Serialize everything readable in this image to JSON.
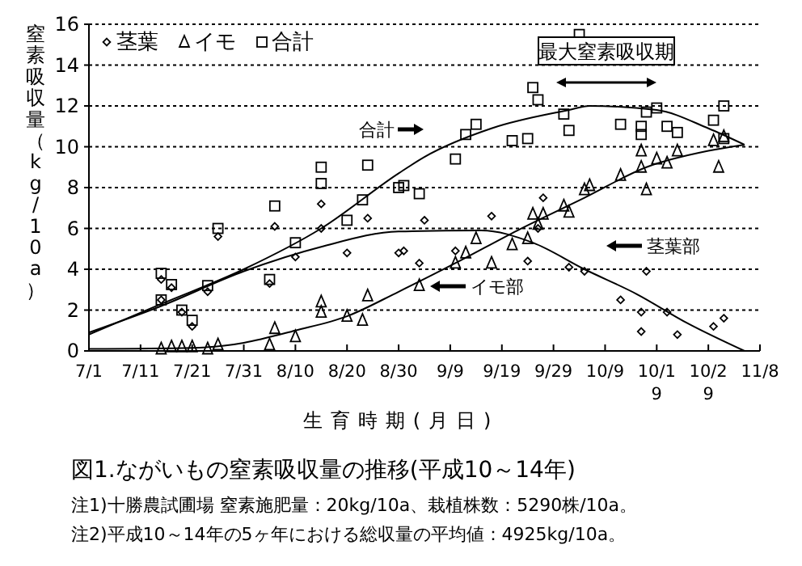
{
  "chart_data": {
    "type": "scatter",
    "title": "図1.ながいもの窒素吸収量の推移(平成10～14年)",
    "xlabel": "生育時期(月日)",
    "ylabel": "窒素吸収量（kg/10a）",
    "xlim": [
      "--07-01",
      "--11-08"
    ],
    "xticks": [
      {
        "value": "--07-01",
        "label": "7/1"
      },
      {
        "value": "--07-11",
        "label": "7/11"
      },
      {
        "value": "--07-21",
        "label": "7/21"
      },
      {
        "value": "--07-31",
        "label": "7/31"
      },
      {
        "value": "--08-10",
        "label": "8/10"
      },
      {
        "value": "--08-20",
        "label": "8/20"
      },
      {
        "value": "--08-30",
        "label": "8/30"
      },
      {
        "value": "--09-09",
        "label": "9/9"
      },
      {
        "value": "--09-19",
        "label": "9/19"
      },
      {
        "value": "--09-29",
        "label": "9/29"
      },
      {
        "value": "--10-09",
        "label": "10/9"
      },
      {
        "value": "--10-19",
        "label": "10/19"
      },
      {
        "value": "--10-29",
        "label": "10/29"
      },
      {
        "value": "--11-08",
        "label": "11/8"
      }
    ],
    "ylim": [
      0,
      16
    ],
    "yticks": [
      0,
      2,
      4,
      6,
      8,
      10,
      12,
      14,
      16
    ],
    "grid": "y",
    "legend": "top left",
    "series": [
      {
        "name": "茎葉",
        "marker": "diamond",
        "color": "#000000",
        "x": [
          "--07-15",
          "--07-15",
          "--07-17",
          "--07-19",
          "--07-21",
          "--07-24",
          "--07-26",
          "--08-05",
          "--08-06",
          "--08-10",
          "--08-15",
          "--08-15",
          "--08-20",
          "--08-24",
          "--08-30",
          "--08-31",
          "--09-03",
          "--09-04",
          "--09-10",
          "--09-17",
          "--09-24",
          "--09-26",
          "--09-27",
          "--10-02",
          "--10-05",
          "--10-12",
          "--10-16",
          "--10-16",
          "--10-17",
          "--10-21",
          "--10-23",
          "--10-30",
          "--11-01"
        ],
        "values": [
          3.5,
          2.5,
          3.1,
          1.9,
          1.2,
          2.9,
          5.6,
          3.3,
          6.1,
          4.6,
          7.2,
          6.0,
          4.8,
          6.5,
          4.8,
          4.9,
          4.3,
          6.4,
          4.9,
          6.6,
          4.4,
          6.0,
          7.5,
          4.1,
          3.9,
          2.5,
          1.9,
          0.95,
          3.9,
          1.9,
          0.8,
          1.2,
          1.6
        ]
      },
      {
        "name": "イモ",
        "marker": "triangle",
        "color": "#000000",
        "x": [
          "--07-15",
          "--07-17",
          "--07-19",
          "--07-21",
          "--07-24",
          "--07-26",
          "--08-05",
          "--08-06",
          "--08-10",
          "--08-15",
          "--08-15",
          "--08-20",
          "--08-23",
          "--08-24",
          "--09-03",
          "--09-10",
          "--09-12",
          "--09-14",
          "--09-17",
          "--09-21",
          "--09-24",
          "--09-25",
          "--09-26",
          "--09-27",
          "--10-01",
          "--10-02",
          "--10-05",
          "--10-06",
          "--10-12",
          "--10-16",
          "--10-16",
          "--10-17",
          "--10-19",
          "--10-21",
          "--10-23",
          "--10-30",
          "--10-31",
          "--11-01"
        ],
        "values": [
          0.1,
          0.2,
          0.2,
          0.2,
          0.1,
          0.3,
          0.3,
          1.1,
          0.7,
          2.4,
          1.9,
          1.7,
          1.5,
          2.7,
          3.2,
          4.3,
          4.8,
          5.5,
          4.3,
          5.2,
          5.5,
          6.7,
          6.2,
          6.7,
          7.1,
          6.8,
          7.9,
          8.1,
          8.6,
          9.0,
          9.8,
          7.9,
          9.4,
          9.2,
          9.8,
          10.3,
          9.0,
          10.5
        ]
      },
      {
        "name": "合計",
        "marker": "square",
        "color": "#000000",
        "x": [
          "--07-15",
          "--07-15",
          "--07-17",
          "--07-19",
          "--07-21",
          "--07-24",
          "--07-26",
          "--08-05",
          "--08-06",
          "--08-10",
          "--08-15",
          "--08-15",
          "--08-20",
          "--08-23",
          "--08-24",
          "--08-30",
          "--08-31",
          "--09-03",
          "--09-10",
          "--09-12",
          "--09-14",
          "--09-21",
          "--09-24",
          "--09-25",
          "--09-26",
          "--10-01",
          "--10-02",
          "--10-04",
          "--10-12",
          "--10-16",
          "--10-16",
          "--10-17",
          "--10-19",
          "--10-21",
          "--10-23",
          "--10-30",
          "--11-01",
          "--11-01"
        ],
        "values": [
          3.8,
          2.5,
          3.25,
          2.0,
          1.5,
          3.2,
          6.0,
          3.5,
          7.1,
          5.3,
          9.0,
          8.2,
          6.4,
          7.4,
          9.1,
          8.0,
          8.1,
          7.7,
          9.4,
          10.6,
          11.1,
          10.3,
          10.4,
          12.9,
          12.3,
          11.6,
          10.8,
          15.5,
          11.1,
          11.0,
          10.6,
          11.7,
          11.9,
          11.0,
          10.7,
          11.3,
          12.0,
          10.4
        ]
      },
      {
        "type": "line",
        "marker": "none",
        "color": "#000000",
        "x": [
          "--07-01",
          "--07-15",
          "--07-31",
          "--08-15",
          "--08-30",
          "--09-15",
          "--09-25",
          "--10-05",
          "--10-15",
          "--10-25",
          "--11-05"
        ],
        "values": [
          0.9,
          2.2,
          3.9,
          5.1,
          5.85,
          5.9,
          5.3,
          4.0,
          2.8,
          1.35,
          0
        ]
      },
      {
        "type": "line",
        "marker": "none",
        "color": "#000000",
        "x": [
          "--07-01",
          "--07-21",
          "--07-31",
          "--08-10",
          "--08-20",
          "--08-30",
          "--09-10",
          "--09-22",
          "--10-05",
          "--10-17",
          "--10-29",
          "--11-05"
        ],
        "values": [
          0.1,
          0.15,
          0.4,
          1.0,
          1.7,
          2.9,
          4.3,
          5.9,
          7.5,
          9.0,
          9.8,
          10.1
        ]
      },
      {
        "type": "line",
        "marker": "none",
        "color": "#000000",
        "x": [
          "--07-01",
          "--07-15",
          "--07-31",
          "--08-15",
          "--08-30",
          "--09-04",
          "--09-17",
          "--10-02",
          "--10-06",
          "--10-19",
          "--10-29",
          "--11-05"
        ],
        "values": [
          0.8,
          2.3,
          4.0,
          6.0,
          8.7,
          9.5,
          10.9,
          11.8,
          12.0,
          11.8,
          10.9,
          10.1
        ]
      }
    ],
    "annotations": [
      "合計",
      "茎葉部",
      "イモ部",
      "最大窒素吸収期",
      "注1)十勝農試圃場 窒素施肥量：20kg/10a、栽植株数：5290株/10a。",
      "注2)平成10～14年の5ヶ年における総収量の平均値：4925kg/10a。"
    ]
  }
}
